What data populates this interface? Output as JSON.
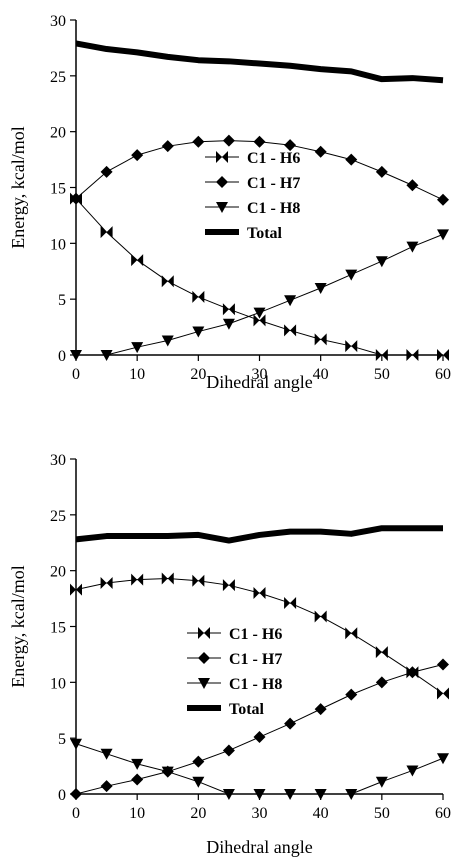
{
  "chart_data": [
    {
      "type": "line",
      "xlabel": "Dihedral angle",
      "ylabel": "Energy, kcal/mol",
      "xlim": [
        0,
        60
      ],
      "ylim": [
        0,
        30
      ],
      "xticks": [
        "0",
        "10",
        "20",
        "30",
        "40",
        "50",
        "60"
      ],
      "yticks": [
        "0",
        "5",
        "10",
        "15",
        "20",
        "25",
        "30"
      ],
      "grid": false,
      "legend_position": "center",
      "x": [
        0,
        5,
        10,
        15,
        20,
        25,
        30,
        35,
        40,
        45,
        50,
        55,
        60
      ],
      "series": [
        {
          "name": "C1 - H6",
          "marker": "bowtie",
          "values": [
            14.0,
            11.0,
            8.5,
            6.6,
            5.2,
            4.1,
            3.1,
            2.2,
            1.4,
            0.8,
            0.0,
            0.0,
            0.0
          ]
        },
        {
          "name": "C1 - H7",
          "marker": "diamond",
          "values": [
            14.0,
            16.4,
            17.9,
            18.7,
            19.1,
            19.2,
            19.1,
            18.8,
            18.2,
            17.5,
            16.4,
            15.2,
            13.9
          ]
        },
        {
          "name": "C1 - H8",
          "marker": "triangle-down",
          "values": [
            0.0,
            0.0,
            0.7,
            1.3,
            2.1,
            2.8,
            3.8,
            4.9,
            6.0,
            7.2,
            8.4,
            9.7,
            10.8
          ]
        },
        {
          "name": "Total",
          "marker": "none",
          "values": [
            27.9,
            27.4,
            27.1,
            26.7,
            26.4,
            26.3,
            26.1,
            25.9,
            25.6,
            25.4,
            24.7,
            24.8,
            24.6
          ]
        }
      ]
    },
    {
      "type": "line",
      "xlabel": "Dihedral angle",
      "ylabel": "Energy, kcal/mol",
      "xlim": [
        0,
        60
      ],
      "ylim": [
        0,
        30
      ],
      "xticks": [
        "0",
        "10",
        "20",
        "30",
        "40",
        "50",
        "60"
      ],
      "yticks": [
        "0",
        "5",
        "10",
        "15",
        "20",
        "25",
        "30"
      ],
      "grid": false,
      "legend_position": "center",
      "x": [
        0,
        5,
        10,
        15,
        20,
        25,
        30,
        35,
        40,
        45,
        50,
        55,
        60
      ],
      "series": [
        {
          "name": "C1 - H6",
          "marker": "bowtie",
          "values": [
            18.3,
            18.9,
            19.2,
            19.3,
            19.1,
            18.7,
            18.0,
            17.1,
            15.9,
            14.4,
            12.7,
            10.9,
            9.0
          ]
        },
        {
          "name": "C1 - H7",
          "marker": "diamond",
          "values": [
            0.0,
            0.7,
            1.3,
            2.0,
            2.9,
            3.9,
            5.1,
            6.3,
            7.6,
            8.9,
            10.0,
            10.9,
            11.6
          ]
        },
        {
          "name": "C1 - H8",
          "marker": "triangle-down",
          "values": [
            4.5,
            3.6,
            2.7,
            2.0,
            1.1,
            0.0,
            0.0,
            0.0,
            0.0,
            0.0,
            1.1,
            2.1,
            3.2
          ]
        },
        {
          "name": "Total",
          "marker": "none",
          "values": [
            22.8,
            23.1,
            23.1,
            23.1,
            23.2,
            22.7,
            23.2,
            23.5,
            23.5,
            23.3,
            23.8,
            23.8,
            23.8
          ]
        }
      ]
    }
  ]
}
